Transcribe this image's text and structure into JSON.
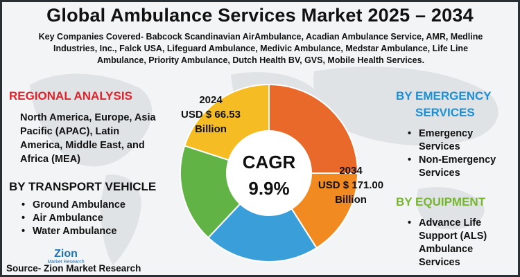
{
  "title": "Global Ambulance Services Market 2025 – 2034",
  "companies": "Key Companies Covered- Babcock Scandinavian AirAmbulance, Acadian Ambulance Service, AMR, Medline Industries, Inc., Falck USA, Lifeguard Ambulance, Medivic Ambulance, Medstar Ambulance, Life Line Ambulance, Priority Ambulance, Dutch Health BV, GVS, Mobile Health Services.",
  "regional": {
    "heading": "REGIONAL ANALYSIS",
    "text": "North America, Europe, Asia Pacific (APAC), Latin America, Middle East, and Africa (MEA)"
  },
  "transport": {
    "heading": "BY TRANSPORT VEHICLE",
    "items": [
      "Ground Ambulance",
      "Air Ambulance",
      "Water Ambulance"
    ]
  },
  "emergency": {
    "heading_line1": "BY EMERGENCY",
    "heading_line2": "SERVICES",
    "items": [
      "Emergency Services",
      "Non-Emergency Services"
    ]
  },
  "equipment": {
    "heading": "BY EQUIPMENT",
    "items": [
      "Advance Life Support (ALS) Ambulance Services"
    ]
  },
  "chart_data": {
    "type": "pie",
    "donut": true,
    "segments": [
      {
        "value": 25,
        "color": "#e8692a"
      },
      {
        "value": 16,
        "color": "#f28a22"
      },
      {
        "value": 21,
        "color": "#3a9fd8"
      },
      {
        "value": 18,
        "color": "#62b346"
      },
      {
        "value": 20,
        "color": "#f5bd23"
      }
    ],
    "center_line1": "CAGR",
    "center_line2": "9.9%",
    "label_2024": {
      "year": "2024",
      "value": "USD $ 66.53",
      "unit": "Billion"
    },
    "label_2034": {
      "year": "2034",
      "value": "USD $ 171.00",
      "unit": "Billion"
    }
  },
  "logo": {
    "name": "Zion",
    "sub": "Market Research",
    "color": "#1f73b7"
  },
  "source": "Source- Zion Market Research"
}
